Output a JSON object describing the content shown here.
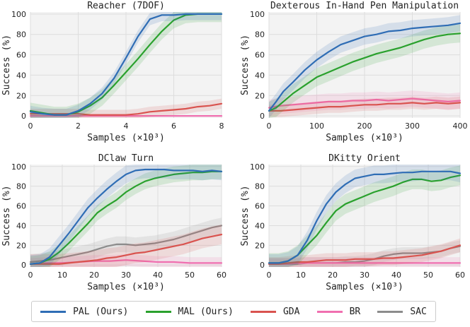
{
  "legend": [
    {
      "name": "PAL (Ours)",
      "color": "#2f6db5"
    },
    {
      "name": "MAL (Ours)",
      "color": "#2aa12d"
    },
    {
      "name": "GDA",
      "color": "#d9534f"
    },
    {
      "name": "BR",
      "color": "#f06fb0"
    },
    {
      "name": "SAC",
      "color": "#8c8c8c"
    }
  ],
  "chart_data": [
    {
      "type": "line",
      "title": "Reacher (7DOF)",
      "xlabel": "Samples (×10³)",
      "ylabel": "Success (%)",
      "xlim": [
        0,
        8
      ],
      "ylim": [
        -2,
        102
      ],
      "xticks": [
        0,
        2,
        4,
        6,
        8
      ],
      "yticks": [
        0,
        20,
        40,
        60,
        80,
        100
      ],
      "series": [
        {
          "name": "PAL (Ours)",
          "color": "#2f6db5",
          "band": 6,
          "x": [
            0,
            0.5,
            1,
            1.5,
            2,
            2.5,
            3,
            3.5,
            4,
            4.5,
            5,
            5.5,
            6,
            6.5,
            7,
            7.5,
            8
          ],
          "y": [
            4,
            2,
            1,
            1,
            5,
            12,
            22,
            37,
            57,
            78,
            95,
            99,
            99,
            100,
            100,
            100,
            100
          ]
        },
        {
          "name": "MAL (Ours)",
          "color": "#2aa12d",
          "band": 8,
          "x": [
            0,
            0.5,
            1,
            1.5,
            2,
            2.5,
            3,
            3.5,
            4,
            4.5,
            5,
            5.5,
            6,
            6.5,
            7,
            7.5,
            8
          ],
          "y": [
            5,
            3,
            1,
            1,
            4,
            10,
            18,
            30,
            43,
            56,
            70,
            83,
            94,
            99,
            100,
            100,
            100
          ]
        },
        {
          "name": "GDA",
          "color": "#d9534f",
          "band": 5,
          "x": [
            0,
            0.5,
            1,
            1.5,
            2,
            2.5,
            3,
            3.5,
            4,
            4.5,
            5,
            5.5,
            6,
            6.5,
            7,
            7.5,
            8
          ],
          "y": [
            2,
            2,
            2,
            2,
            2,
            1,
            1,
            1,
            1,
            2,
            4,
            5,
            6,
            7,
            9,
            10,
            12
          ]
        },
        {
          "name": "BR",
          "color": "#f06fb0",
          "band": 0,
          "x": [
            0,
            8
          ],
          "y": [
            0,
            0
          ]
        }
      ]
    },
    {
      "type": "line",
      "title": "Dexterous In-Hand Pen Manipulation",
      "xlabel": "Samples (×10³)",
      "ylabel": "Success (%)",
      "xlim": [
        0,
        400
      ],
      "ylim": [
        -2,
        102
      ],
      "xticks": [
        0,
        100,
        200,
        300,
        400
      ],
      "yticks": [
        0,
        20,
        40,
        60,
        80,
        100
      ],
      "series": [
        {
          "name": "PAL (Ours)",
          "color": "#2f6db5",
          "band": 8,
          "x": [
            0,
            15,
            30,
            50,
            75,
            100,
            125,
            150,
            175,
            200,
            225,
            250,
            275,
            300,
            325,
            350,
            375,
            400
          ],
          "y": [
            5,
            14,
            24,
            33,
            45,
            55,
            63,
            70,
            74,
            78,
            80,
            83,
            84,
            86,
            87,
            88,
            89,
            91
          ]
        },
        {
          "name": "MAL (Ours)",
          "color": "#2aa12d",
          "band": 9,
          "x": [
            0,
            15,
            30,
            50,
            75,
            100,
            125,
            150,
            175,
            200,
            225,
            250,
            275,
            300,
            325,
            350,
            375,
            400
          ],
          "y": [
            5,
            8,
            14,
            22,
            30,
            38,
            43,
            48,
            53,
            57,
            61,
            64,
            67,
            71,
            75,
            78,
            80,
            81
          ]
        },
        {
          "name": "GDA",
          "color": "#d9534f",
          "band": 6,
          "x": [
            0,
            25,
            50,
            75,
            100,
            125,
            150,
            175,
            200,
            225,
            250,
            275,
            300,
            325,
            350,
            375,
            400
          ],
          "y": [
            5,
            5,
            6,
            7,
            8,
            9,
            9,
            10,
            11,
            11,
            12,
            12,
            13,
            12,
            13,
            12,
            13
          ]
        },
        {
          "name": "BR",
          "color": "#f06fb0",
          "band": 8,
          "x": [
            0,
            25,
            50,
            75,
            100,
            125,
            150,
            175,
            200,
            225,
            250,
            275,
            300,
            325,
            350,
            375,
            400
          ],
          "y": [
            8,
            10,
            11,
            12,
            13,
            14,
            14,
            15,
            15,
            16,
            15,
            16,
            17,
            16,
            15,
            14,
            15
          ]
        }
      ]
    },
    {
      "type": "line",
      "title": "DClaw Turn",
      "xlabel": "Samples (×10³)",
      "ylabel": "Success (%)",
      "xlim": [
        0,
        60
      ],
      "ylim": [
        -2,
        102
      ],
      "xticks": [
        0,
        10,
        20,
        30,
        40,
        50,
        60
      ],
      "yticks": [
        0,
        20,
        40,
        60,
        80,
        100
      ],
      "series": [
        {
          "name": "PAL (Ours)",
          "color": "#2f6db5",
          "band": 9,
          "x": [
            0,
            3,
            6,
            9,
            12,
            15,
            18,
            21,
            24,
            27,
            30,
            33,
            36,
            39,
            42,
            45,
            48,
            51,
            54,
            57,
            60
          ],
          "y": [
            1,
            2,
            8,
            20,
            32,
            45,
            58,
            68,
            77,
            85,
            92,
            96,
            97,
            97,
            97,
            96,
            96,
            96,
            95,
            96,
            95
          ]
        },
        {
          "name": "MAL (Ours)",
          "color": "#2aa12d",
          "band": 8,
          "x": [
            0,
            3,
            6,
            9,
            12,
            15,
            18,
            21,
            24,
            27,
            30,
            33,
            36,
            39,
            42,
            45,
            48,
            51,
            54,
            57,
            60
          ],
          "y": [
            1,
            2,
            6,
            13,
            22,
            32,
            42,
            53,
            60,
            66,
            74,
            80,
            85,
            88,
            90,
            92,
            93,
            94,
            94,
            95,
            95
          ]
        },
        {
          "name": "GDA",
          "color": "#d9534f",
          "band": 10,
          "x": [
            0,
            3,
            6,
            9,
            12,
            15,
            18,
            21,
            24,
            27,
            30,
            33,
            36,
            39,
            42,
            45,
            48,
            51,
            54,
            57,
            60
          ],
          "y": [
            1,
            1,
            1,
            1,
            2,
            3,
            4,
            5,
            7,
            8,
            10,
            12,
            13,
            15,
            17,
            19,
            21,
            24,
            27,
            29,
            31
          ]
        },
        {
          "name": "BR",
          "color": "#f06fb0",
          "band": 6,
          "x": [
            0,
            5,
            10,
            15,
            20,
            25,
            30,
            35,
            40,
            45,
            50,
            55,
            60
          ],
          "y": [
            1,
            2,
            2,
            3,
            4,
            4,
            5,
            4,
            3,
            3,
            2,
            2,
            2
          ]
        },
        {
          "name": "SAC",
          "color": "#8c8c8c",
          "band": 8,
          "x": [
            0,
            3,
            6,
            9,
            12,
            15,
            18,
            21,
            24,
            27,
            30,
            33,
            36,
            39,
            42,
            45,
            48,
            51,
            54,
            57,
            60
          ],
          "y": [
            3,
            4,
            5,
            7,
            9,
            11,
            13,
            16,
            19,
            21,
            21,
            20,
            21,
            22,
            24,
            26,
            29,
            32,
            35,
            38,
            40
          ]
        }
      ]
    },
    {
      "type": "line",
      "title": "DKitty Orient",
      "xlabel": "Samples (×10³)",
      "ylabel": "Success (%)",
      "xlim": [
        0,
        60
      ],
      "ylim": [
        -2,
        102
      ],
      "xticks": [
        0,
        10,
        20,
        30,
        40,
        50,
        60
      ],
      "yticks": [
        0,
        20,
        40,
        60,
        80,
        100
      ],
      "series": [
        {
          "name": "PAL (Ours)",
          "color": "#2f6db5",
          "band": 9,
          "x": [
            0,
            3,
            6,
            9,
            12,
            15,
            18,
            21,
            24,
            27,
            30,
            33,
            36,
            39,
            42,
            45,
            48,
            51,
            54,
            57,
            60
          ],
          "y": [
            2,
            2,
            4,
            10,
            25,
            45,
            62,
            74,
            82,
            88,
            90,
            92,
            92,
            93,
            94,
            94,
            95,
            95,
            95,
            95,
            93
          ]
        },
        {
          "name": "MAL (Ours)",
          "color": "#2aa12d",
          "band": 10,
          "x": [
            0,
            3,
            6,
            9,
            12,
            15,
            18,
            21,
            24,
            27,
            30,
            33,
            36,
            39,
            42,
            45,
            48,
            51,
            54,
            57,
            60
          ],
          "y": [
            2,
            2,
            4,
            10,
            20,
            30,
            43,
            55,
            62,
            66,
            70,
            74,
            77,
            80,
            84,
            87,
            87,
            85,
            86,
            89,
            91
          ]
        },
        {
          "name": "GDA",
          "color": "#d9534f",
          "band": 7,
          "x": [
            0,
            3,
            6,
            9,
            12,
            15,
            18,
            21,
            24,
            27,
            30,
            33,
            36,
            39,
            42,
            45,
            48,
            51,
            54,
            57,
            60
          ],
          "y": [
            1,
            1,
            2,
            3,
            3,
            4,
            5,
            5,
            5,
            6,
            6,
            6,
            7,
            7,
            8,
            9,
            10,
            12,
            14,
            17,
            20
          ]
        },
        {
          "name": "BR",
          "color": "#f06fb0",
          "band": 6,
          "x": [
            0,
            5,
            10,
            15,
            20,
            25,
            30,
            35,
            40,
            45,
            50,
            55,
            60
          ],
          "y": [
            1,
            1,
            2,
            2,
            2,
            2,
            2,
            2,
            2,
            2,
            2,
            2,
            2
          ]
        },
        {
          "name": "SAC",
          "color": "#8c8c8c",
          "band": 6,
          "x": [
            0,
            3,
            6,
            9,
            12,
            15,
            18,
            21,
            24,
            27,
            30,
            33,
            36,
            39,
            42,
            45,
            48,
            51,
            54,
            57,
            60
          ],
          "y": [
            1,
            1,
            1,
            1,
            2,
            2,
            2,
            2,
            3,
            3,
            4,
            6,
            9,
            11,
            12,
            12,
            12,
            13,
            14,
            17,
            19
          ]
        }
      ]
    }
  ]
}
